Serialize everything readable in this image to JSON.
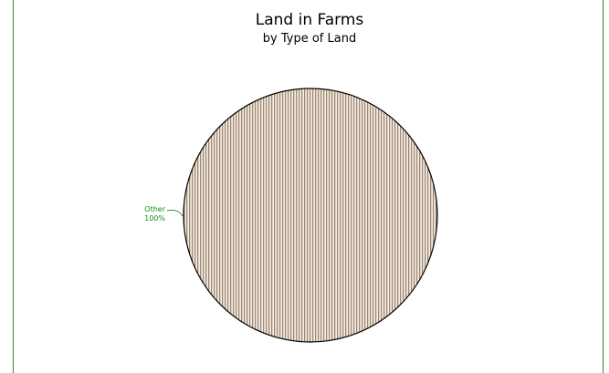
{
  "chart_data": {
    "type": "pie",
    "title": "Land in Farms",
    "subtitle": "by Type of Land",
    "slices": [
      {
        "label": "Other",
        "percent_label": "100%",
        "value": 100
      }
    ],
    "colors": {
      "frame": "#2e8b2e",
      "slice_fill": "#f4ece2",
      "slice_hatch": "#7a5c46",
      "outline": "#000000",
      "label": "#1a8a1a"
    }
  }
}
